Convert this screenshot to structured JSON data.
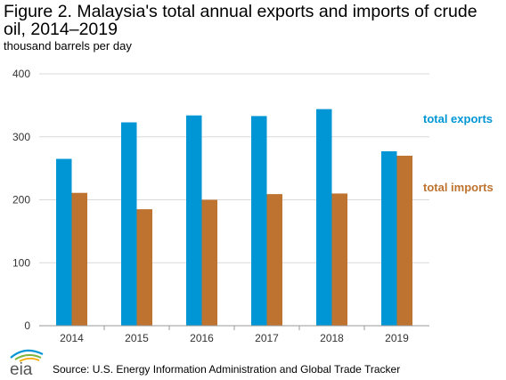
{
  "title": "Figure 2. Malaysia's total annual exports and imports of crude oil, 2014–2019",
  "colors": {
    "exports": "#0096D6",
    "imports": "#BE7430",
    "grid": "#d9d9d9",
    "axis": "#999999"
  },
  "chart_data": {
    "type": "bar",
    "ylabel": "thousand barrels per day",
    "categories": [
      "2014",
      "2015",
      "2016",
      "2017",
      "2018",
      "2019"
    ],
    "series": [
      {
        "name": "total exports",
        "values": [
          265,
          323,
          334,
          333,
          344,
          277
        ]
      },
      {
        "name": "total imports",
        "values": [
          211,
          185,
          200,
          209,
          210,
          270
        ]
      }
    ],
    "ylim": [
      0,
      400
    ],
    "yticks": [
      0,
      100,
      200,
      300,
      400
    ],
    "grid": true,
    "legend_placement": "right"
  },
  "source": "Source: U.S. Energy Information Administration and Global Trade Tracker",
  "logo_text": "eia"
}
